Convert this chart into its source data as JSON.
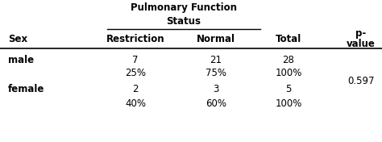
{
  "title_line1": "Pulmonary Function",
  "title_line2": "Status",
  "col_sex": "Sex",
  "col_restriction": "Restriction",
  "col_normal": "Normal",
  "col_total": "Total",
  "col_pvalue_1": "p-",
  "col_pvalue_2": "value",
  "rows": [
    {
      "sex": "male",
      "restriction": "7",
      "pct_r": "25%",
      "normal": "21",
      "pct_n": "75%",
      "total": "28",
      "pct_t": "100%",
      "pvalue": ""
    },
    {
      "sex": "female",
      "restriction": "2",
      "pct_r": "40%",
      "normal": "3",
      "pct_n": "60%",
      "total": "5",
      "pct_t": "100%",
      "pvalue": "0.597"
    }
  ],
  "figsize": [
    4.74,
    1.76
  ],
  "dpi": 100,
  "bg_color": "#ffffff",
  "font_color": "#000000"
}
